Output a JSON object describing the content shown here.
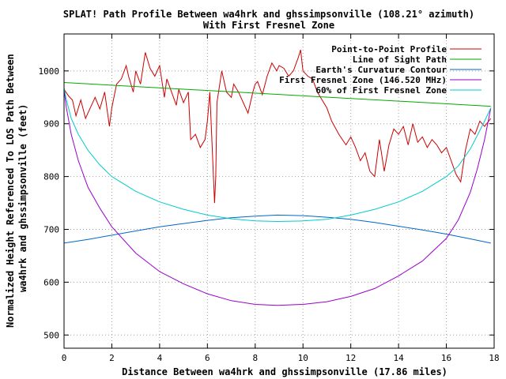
{
  "chart_data": {
    "type": "line",
    "title": "SPLAT! Path Profile Between wa4hrk and ghssimpsonville (108.21° azimuth)",
    "subtitle": "With First Fresnel Zone",
    "xlabel": "Distance Between wa4hrk and ghssimpsonville (17.86 miles)",
    "ylabel": "Normalized Height Referenced To LOS Path Between",
    "ylabel2": "wa4hrk and ghssimpsonville (feet)",
    "xlim": [
      0,
      18
    ],
    "ylim": [
      475,
      1070
    ],
    "xticks": [
      0,
      2,
      4,
      6,
      8,
      10,
      12,
      14,
      16,
      18
    ],
    "yticks": [
      500,
      600,
      700,
      800,
      900,
      1000
    ],
    "grid": true,
    "legend_position": "top-right",
    "series": [
      {
        "name": "Point-to-Point Profile",
        "color": "#cc0000",
        "x": [
          0,
          0.2,
          0.35,
          0.5,
          0.7,
          0.9,
          1.1,
          1.3,
          1.5,
          1.7,
          1.9,
          2.0,
          2.2,
          2.4,
          2.6,
          2.7,
          2.9,
          3.0,
          3.2,
          3.4,
          3.6,
          3.8,
          4.0,
          4.2,
          4.3,
          4.5,
          4.7,
          4.8,
          5.0,
          5.2,
          5.3,
          5.5,
          5.7,
          5.9,
          6.0,
          6.1,
          6.2,
          6.3,
          6.35,
          6.4,
          6.6,
          6.8,
          7.0,
          7.1,
          7.3,
          7.5,
          7.7,
          7.9,
          8.0,
          8.1,
          8.3,
          8.5,
          8.7,
          8.9,
          9.0,
          9.2,
          9.4,
          9.6,
          9.8,
          9.9,
          10.0,
          10.2,
          10.4,
          10.6,
          10.8,
          11.0,
          11.2,
          11.5,
          11.8,
          12.0,
          12.2,
          12.4,
          12.6,
          12.8,
          13.0,
          13.2,
          13.4,
          13.6,
          13.8,
          14.0,
          14.2,
          14.4,
          14.6,
          14.8,
          15.0,
          15.2,
          15.4,
          15.6,
          15.8,
          16.0,
          16.2,
          16.4,
          16.6,
          16.8,
          17.0,
          17.2,
          17.4,
          17.6,
          17.86
        ],
        "y": [
          965,
          952,
          945,
          915,
          945,
          910,
          930,
          950,
          928,
          960,
          895,
          930,
          975,
          985,
          1010,
          990,
          960,
          1000,
          975,
          1035,
          1005,
          990,
          1010,
          950,
          985,
          960,
          935,
          965,
          940,
          960,
          870,
          880,
          855,
          870,
          905,
          960,
          855,
          750,
          800,
          940,
          1000,
          960,
          950,
          975,
          960,
          940,
          920,
          960,
          975,
          980,
          955,
          990,
          1015,
          1000,
          1010,
          1005,
          990,
          1000,
          1025,
          1040,
          1000,
          990,
          985,
          960,
          945,
          930,
          905,
          880,
          860,
          875,
          855,
          830,
          845,
          810,
          800,
          870,
          810,
          860,
          890,
          880,
          895,
          860,
          900,
          865,
          875,
          855,
          870,
          860,
          845,
          855,
          830,
          805,
          790,
          850,
          890,
          880,
          905,
          895,
          910
        ]
      },
      {
        "name": "Line of Sight Path",
        "color": "#00aa00",
        "x": [
          0,
          17.86
        ],
        "y": [
          978,
          933
        ]
      },
      {
        "name": "Earth's Curvature Contour",
        "color": "#0066cc",
        "x": [
          0,
          1,
          2,
          3,
          4,
          5,
          6,
          7,
          8,
          8.93,
          10,
          11,
          12,
          13,
          14,
          15,
          16,
          17,
          17.86
        ],
        "y": [
          674,
          681,
          689,
          697,
          705,
          711,
          717,
          722,
          725,
          727,
          726,
          723,
          719,
          713,
          706,
          699,
          691,
          682,
          674
        ]
      },
      {
        "name": "First Fresnel Zone (146.520 MHz)",
        "color": "#9900cc",
        "x": [
          0,
          0.1,
          0.3,
          0.6,
          1,
          1.5,
          2,
          3,
          4,
          5,
          6,
          7,
          8,
          8.93,
          10,
          11,
          12,
          13,
          14,
          15,
          16,
          16.5,
          17,
          17.3,
          17.6,
          17.86
        ],
        "y": [
          965,
          930,
          880,
          830,
          780,
          740,
          705,
          655,
          620,
          597,
          578,
          565,
          558,
          556,
          558,
          563,
          573,
          588,
          612,
          640,
          683,
          718,
          770,
          815,
          870,
          930
        ]
      },
      {
        "name": "60% of First Fresnel Zone",
        "color": "#00cccc",
        "x": [
          0,
          0.1,
          0.3,
          0.6,
          1,
          1.5,
          2,
          3,
          4,
          5,
          6,
          7,
          8,
          8.93,
          10,
          11,
          12,
          13,
          14,
          15,
          16,
          16.5,
          17,
          17.3,
          17.6,
          17.86
        ],
        "y": [
          968,
          945,
          910,
          880,
          850,
          822,
          800,
          772,
          752,
          738,
          727,
          720,
          716,
          715,
          716,
          719,
          727,
          738,
          752,
          772,
          800,
          820,
          852,
          878,
          905,
          930
        ]
      }
    ]
  }
}
